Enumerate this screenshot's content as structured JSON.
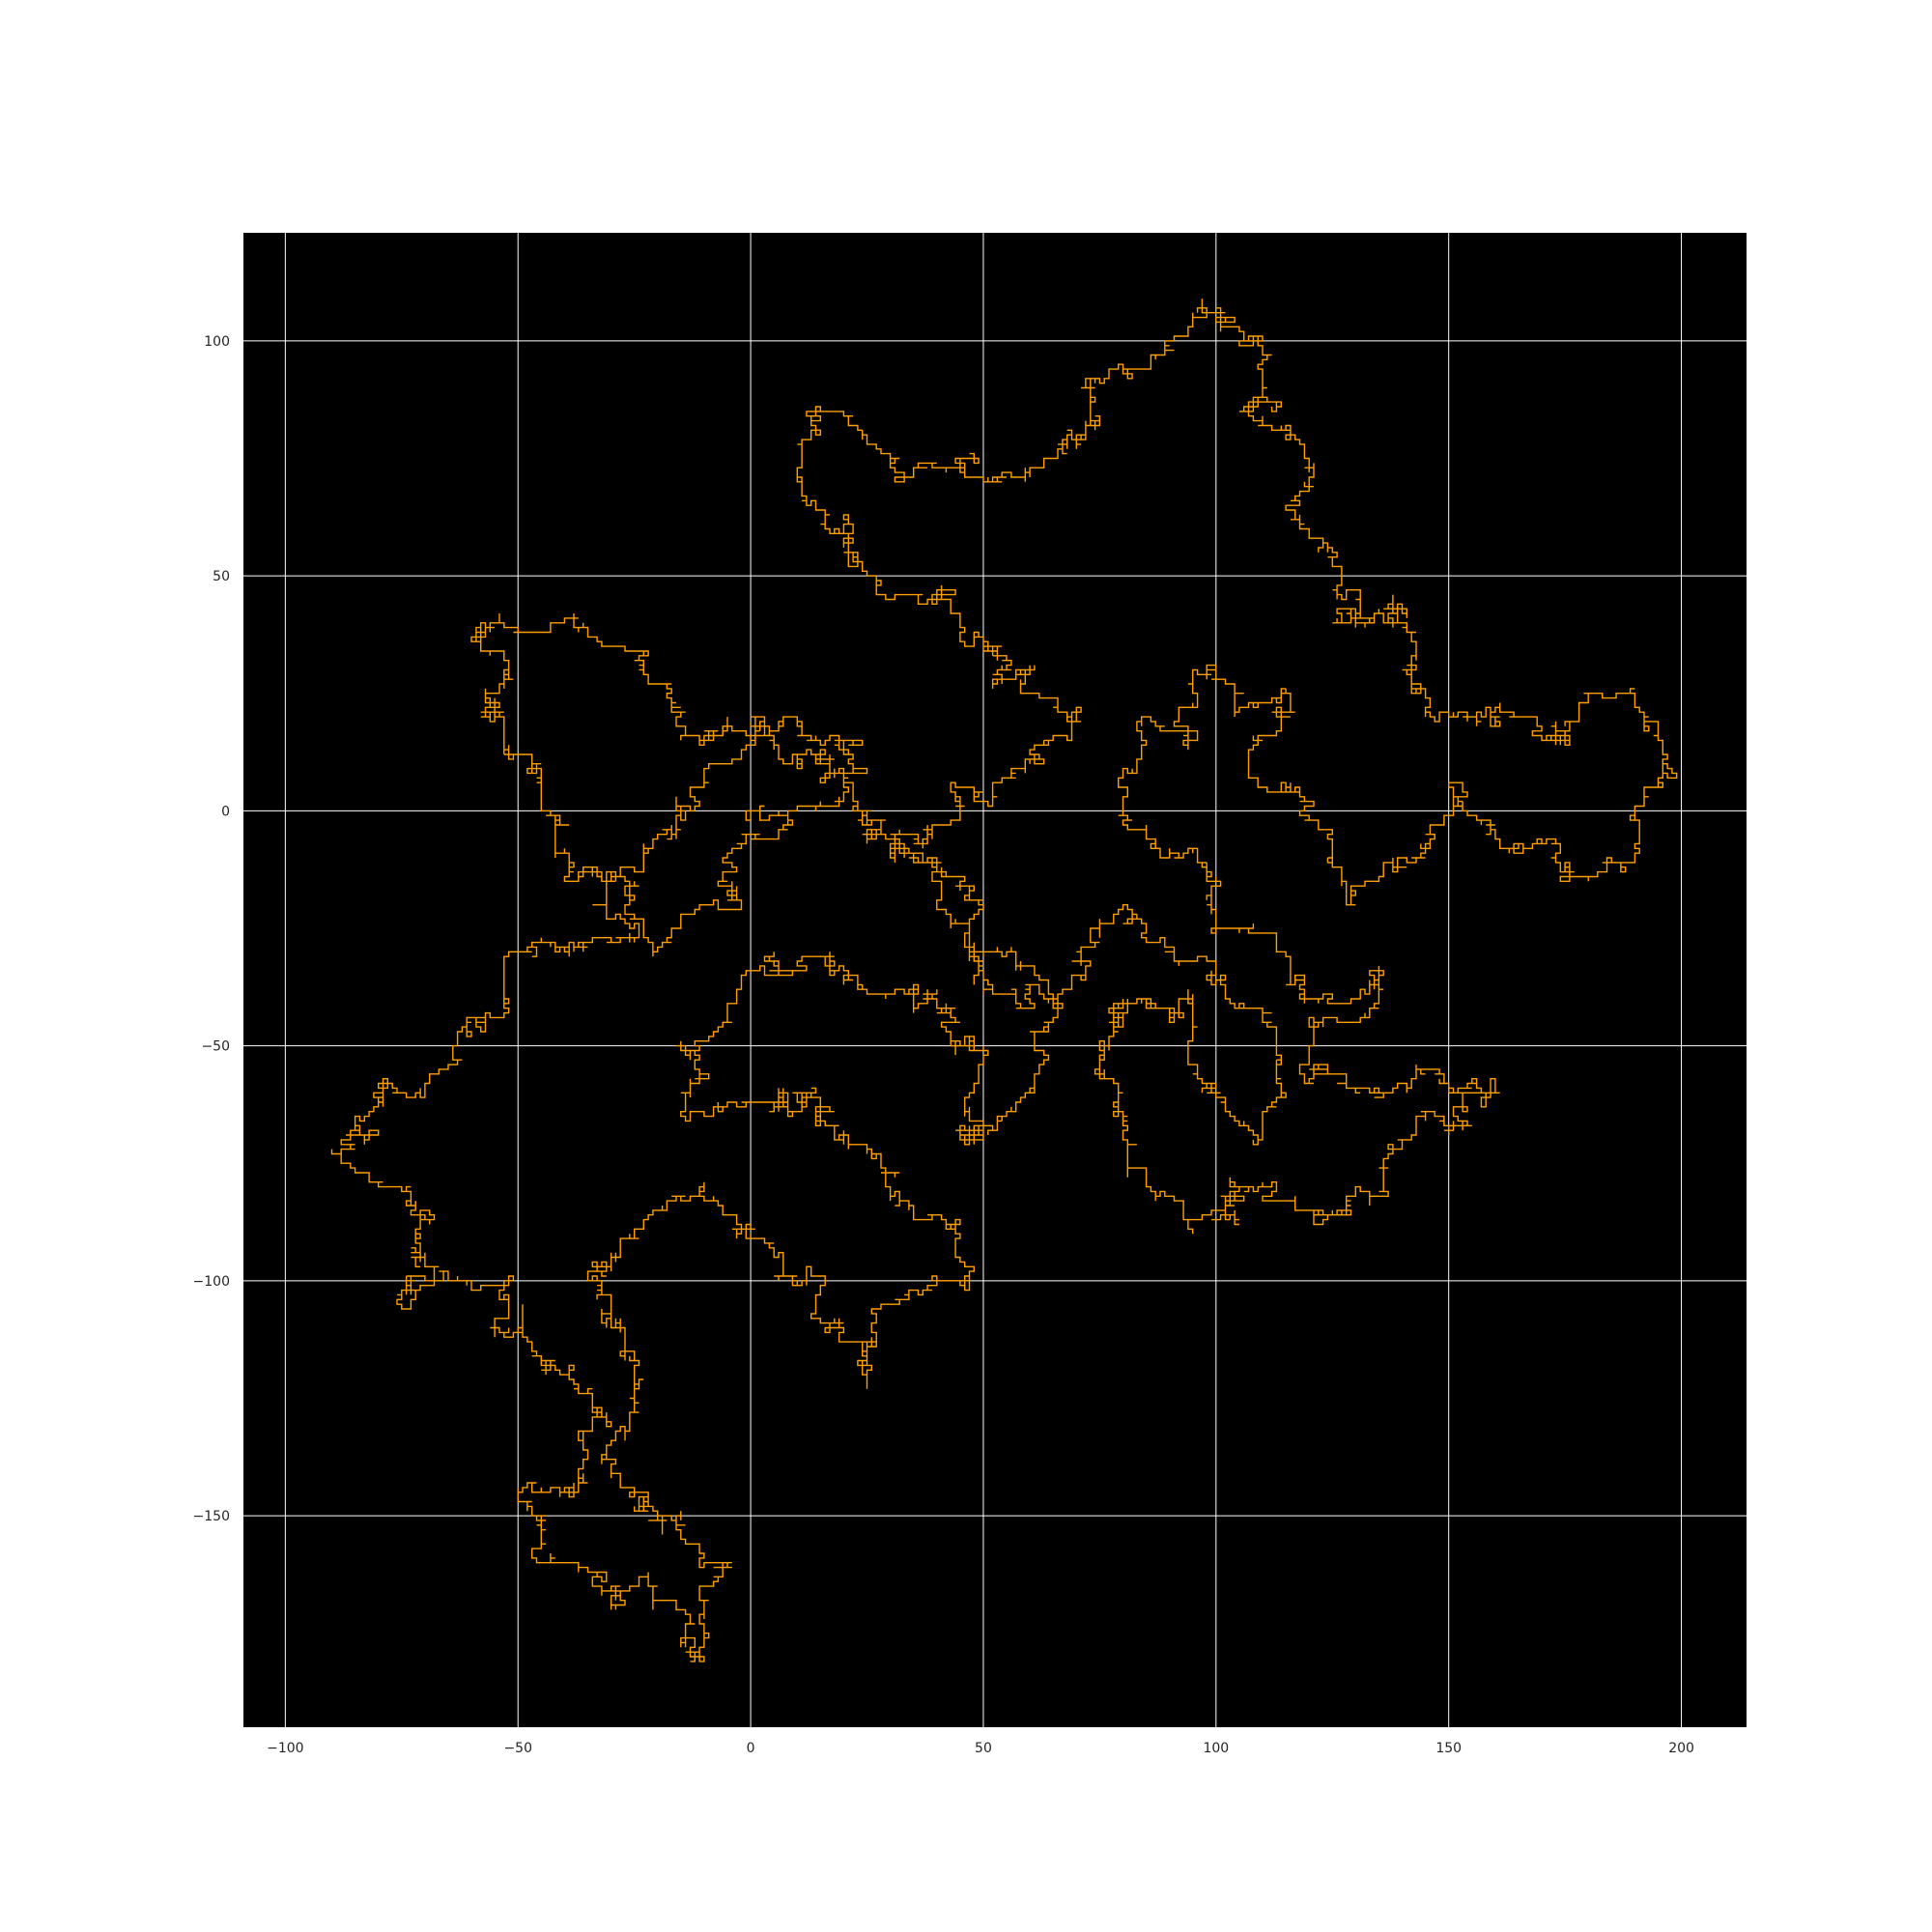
{
  "chart_data": {
    "type": "line",
    "title": "",
    "xlabel": "",
    "ylabel": "",
    "xlim": [
      -109,
      214
    ],
    "ylim": [
      -195,
      123
    ],
    "x_ticks": [
      -100,
      -50,
      0,
      50,
      100,
      150,
      200
    ],
    "y_ticks": [
      100,
      50,
      0,
      -50,
      -100,
      -150
    ],
    "x_tick_labels": [
      "−100",
      "−50",
      "0",
      "50",
      "100",
      "150",
      "200"
    ],
    "y_tick_labels": [
      "100",
      "50",
      "0",
      "−50",
      "−100",
      "−150"
    ],
    "grid": true,
    "legend": "none",
    "background_color": "#000000",
    "grid_color": "#ffffff",
    "line_color": "#ff9f00",
    "series": [
      {
        "values_description": "lattice random walk (unit steps on integer grid)",
        "anchor_points": [
          [
            0,
            0
          ],
          [
            20,
            2
          ],
          [
            10,
            20
          ],
          [
            -15,
            15
          ],
          [
            -30,
            35
          ],
          [
            -58,
            40
          ],
          [
            -55,
            20
          ],
          [
            -45,
            5
          ],
          [
            -40,
            -15
          ],
          [
            -25,
            -25
          ],
          [
            -50,
            -30
          ],
          [
            -60,
            -45
          ],
          [
            -65,
            -55
          ],
          [
            -80,
            -60
          ],
          [
            -90,
            -72
          ],
          [
            -75,
            -80
          ],
          [
            -70,
            -95
          ],
          [
            -75,
            -105
          ],
          [
            -60,
            -100
          ],
          [
            -50,
            -110
          ],
          [
            -40,
            -120
          ],
          [
            -30,
            -130
          ],
          [
            -40,
            -145
          ],
          [
            -50,
            -145
          ],
          [
            -45,
            -160
          ],
          [
            -30,
            -170
          ],
          [
            -20,
            -165
          ],
          [
            -15,
            -178
          ],
          [
            -10,
            -165
          ],
          [
            -5,
            -160
          ],
          [
            -20,
            -150
          ],
          [
            -30,
            -140
          ],
          [
            -25,
            -120
          ],
          [
            -35,
            -100
          ],
          [
            -20,
            -85
          ],
          [
            0,
            -90
          ],
          [
            10,
            -100
          ],
          [
            20,
            -110
          ],
          [
            25,
            -120
          ],
          [
            30,
            -105
          ],
          [
            40,
            -100
          ],
          [
            45,
            -90
          ],
          [
            30,
            -80
          ],
          [
            20,
            -70
          ],
          [
            10,
            -60
          ],
          [
            -15,
            -60
          ],
          [
            -5,
            -45
          ],
          [
            5,
            -30
          ],
          [
            20,
            -35
          ],
          [
            35,
            -40
          ],
          [
            50,
            -50
          ],
          [
            45,
            -70
          ],
          [
            60,
            -60
          ],
          [
            65,
            -45
          ],
          [
            55,
            -30
          ],
          [
            40,
            -20
          ],
          [
            30,
            -5
          ],
          [
            45,
            5
          ],
          [
            60,
            10
          ],
          [
            70,
            20
          ],
          [
            55,
            30
          ],
          [
            45,
            40
          ],
          [
            30,
            45
          ],
          [
            20,
            55
          ],
          [
            10,
            70
          ],
          [
            15,
            85
          ],
          [
            30,
            75
          ],
          [
            45,
            72
          ],
          [
            60,
            72
          ],
          [
            70,
            80
          ],
          [
            80,
            95
          ],
          [
            90,
            100
          ],
          [
            100,
            105
          ],
          [
            110,
            100
          ],
          [
            105,
            85
          ],
          [
            115,
            65
          ],
          [
            125,
            55
          ],
          [
            130,
            40
          ],
          [
            140,
            42
          ],
          [
            145,
            25
          ],
          [
            160,
            20
          ],
          [
            175,
            15
          ],
          [
            190,
            25
          ],
          [
            195,
            5
          ],
          [
            190,
            -10
          ],
          [
            175,
            -15
          ],
          [
            160,
            -5
          ],
          [
            150,
            5
          ],
          [
            140,
            -10
          ],
          [
            130,
            -20
          ],
          [
            125,
            -5
          ],
          [
            110,
            5
          ],
          [
            115,
            20
          ],
          [
            100,
            30
          ],
          [
            95,
            15
          ],
          [
            85,
            20
          ],
          [
            80,
            5
          ],
          [
            90,
            -10
          ],
          [
            100,
            -25
          ],
          [
            115,
            -30
          ],
          [
            125,
            -40
          ],
          [
            135,
            -35
          ],
          [
            120,
            -55
          ],
          [
            130,
            -60
          ],
          [
            145,
            -55
          ],
          [
            160,
            -60
          ],
          [
            140,
            -70
          ],
          [
            130,
            -80
          ],
          [
            120,
            -85
          ],
          [
            105,
            -80
          ],
          [
            95,
            -90
          ],
          [
            85,
            -80
          ],
          [
            80,
            -65
          ],
          [
            75,
            -50
          ],
          [
            85,
            -40
          ],
          [
            95,
            -45
          ],
          [
            100,
            -60
          ],
          [
            110,
            -70
          ],
          [
            115,
            -60
          ],
          [
            110,
            -45
          ],
          [
            100,
            -35
          ],
          [
            90,
            -30
          ],
          [
            80,
            -20
          ],
          [
            70,
            -30
          ],
          [
            60,
            -40
          ],
          [
            50,
            -20
          ],
          [
            40,
            -10
          ],
          [
            25,
            0
          ],
          [
            10,
            10
          ],
          [
            0,
            20
          ],
          [
            -10,
            5
          ],
          [
            -20,
            -5
          ],
          [
            -30,
            -15
          ],
          [
            -20,
            -30
          ],
          [
            -10,
            -20
          ],
          [
            0,
            -5
          ],
          [
            10,
            0
          ]
        ]
      }
    ]
  }
}
